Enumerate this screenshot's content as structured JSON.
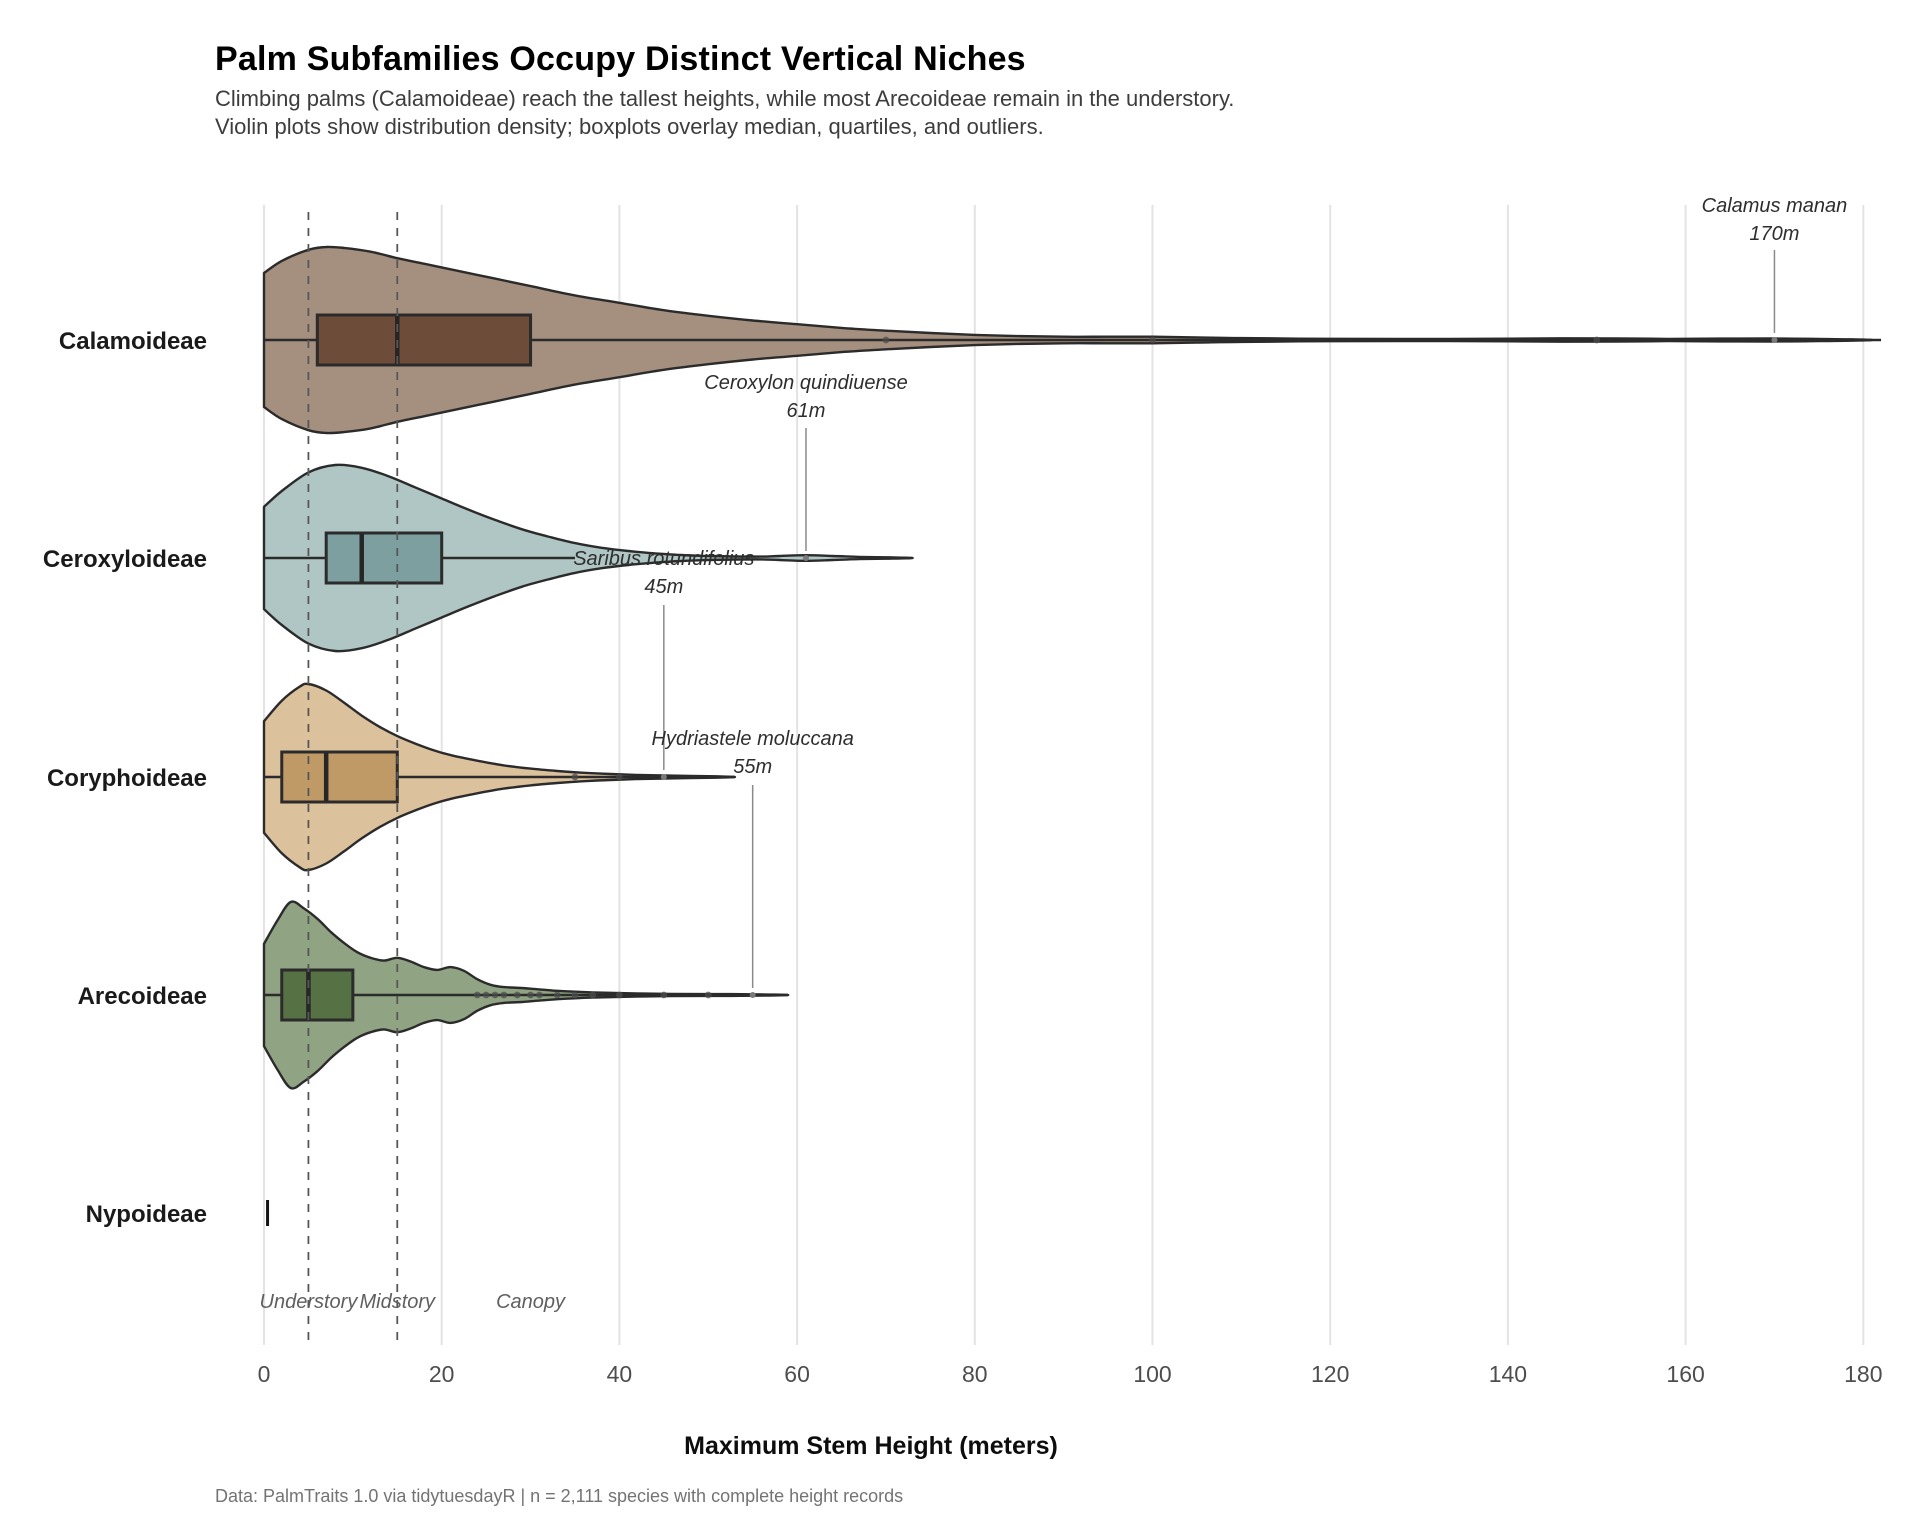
{
  "title": "Palm Subfamilies Occupy Distinct Vertical Niches",
  "subtitle": {
    "line1": "Climbing palms (Calamoideae) reach the tallest heights, while most Arecoideae remain in the understory.",
    "line2": "Violin plots show distribution density; boxplots overlay median, quartiles, and outliers."
  },
  "caption": "Data: PalmTraits 1.0 via tidytuesdayR | n = 2,111 species with complete height records",
  "chart_data": {
    "type": "violin+boxplot",
    "orientation": "horizontal",
    "title": "Palm Subfamilies Occupy Distinct Vertical Niches",
    "xlabel": "Maximum Stem Height (meters)",
    "xlim": [
      0,
      180
    ],
    "x_ticks": [
      0,
      20,
      40,
      60,
      80,
      100,
      120,
      140,
      160,
      180
    ],
    "grid": "vertical-major-only",
    "legend": "none",
    "reference_lines": [
      {
        "label": "Understory",
        "x": 5,
        "dashed": true
      },
      {
        "label": "Midstory",
        "x": 15,
        "dashed": true
      },
      {
        "label": "Canopy",
        "x": 30,
        "dashed": false
      }
    ],
    "series": [
      {
        "name": "Calamoideae",
        "fill": "#a5907f",
        "box_fill": "#6d4c39",
        "violin": [
          [
            0,
            0.72
          ],
          [
            2,
            0.85
          ],
          [
            5,
            0.97
          ],
          [
            7,
            1.0
          ],
          [
            9,
            0.99
          ],
          [
            12,
            0.95
          ],
          [
            15,
            0.88
          ],
          [
            18,
            0.82
          ],
          [
            22,
            0.74
          ],
          [
            26,
            0.66
          ],
          [
            30,
            0.58
          ],
          [
            35,
            0.48
          ],
          [
            40,
            0.4
          ],
          [
            45,
            0.32
          ],
          [
            50,
            0.26
          ],
          [
            55,
            0.21
          ],
          [
            60,
            0.17
          ],
          [
            65,
            0.13
          ],
          [
            70,
            0.1
          ],
          [
            75,
            0.075
          ],
          [
            80,
            0.055
          ],
          [
            85,
            0.042
          ],
          [
            90,
            0.035
          ],
          [
            95,
            0.035
          ],
          [
            100,
            0.035
          ],
          [
            105,
            0.028
          ],
          [
            110,
            0.02
          ],
          [
            120,
            0.013
          ],
          [
            130,
            0.011
          ],
          [
            140,
            0.014
          ],
          [
            146,
            0.018
          ],
          [
            152,
            0.017
          ],
          [
            158,
            0.012
          ],
          [
            164,
            0.015
          ],
          [
            170,
            0.016
          ],
          [
            175,
            0.012
          ],
          [
            181,
            0
          ]
        ],
        "box": {
          "q1": 6,
          "median": 15,
          "q3": 30
        },
        "line_end": 182,
        "outliers": [
          70,
          100,
          150
        ],
        "annotation": {
          "species": "Calamus manan",
          "label": "170m",
          "value": 170
        }
      },
      {
        "name": "Ceroxyloideae",
        "fill": "#afc6c4",
        "box_fill": "#7d9fa0",
        "violin": [
          [
            0,
            0.55
          ],
          [
            2,
            0.72
          ],
          [
            5,
            0.92
          ],
          [
            8,
            1.0
          ],
          [
            11,
            0.97
          ],
          [
            14,
            0.88
          ],
          [
            17,
            0.76
          ],
          [
            20,
            0.64
          ],
          [
            23,
            0.52
          ],
          [
            26,
            0.41
          ],
          [
            29,
            0.31
          ],
          [
            32,
            0.23
          ],
          [
            35,
            0.16
          ],
          [
            38,
            0.11
          ],
          [
            41,
            0.075
          ],
          [
            44,
            0.05
          ],
          [
            47,
            0.032
          ],
          [
            50,
            0.022
          ],
          [
            53,
            0.016
          ],
          [
            56,
            0.015
          ],
          [
            58,
            0.022
          ],
          [
            61,
            0.03
          ],
          [
            64,
            0.022
          ],
          [
            67,
            0.012
          ],
          [
            70,
            0.007
          ],
          [
            73,
            0
          ]
        ],
        "box": {
          "q1": 7,
          "median": 11,
          "q3": 20
        },
        "line_end": 35,
        "outliers": [],
        "annotation": {
          "species": "Ceroxylon quindiuense",
          "label": "61m",
          "value": 61
        }
      },
      {
        "name": "Coryphoideae",
        "fill": "#dcc19d",
        "box_fill": "#bf9a66",
        "violin": [
          [
            0,
            0.6
          ],
          [
            2,
            0.82
          ],
          [
            4,
            0.97
          ],
          [
            5,
            1.0
          ],
          [
            7,
            0.93
          ],
          [
            9,
            0.8
          ],
          [
            11,
            0.66
          ],
          [
            13,
            0.54
          ],
          [
            15,
            0.44
          ],
          [
            17,
            0.36
          ],
          [
            19,
            0.29
          ],
          [
            21,
            0.235
          ],
          [
            24,
            0.175
          ],
          [
            27,
            0.125
          ],
          [
            30,
            0.09
          ],
          [
            33,
            0.065
          ],
          [
            36,
            0.045
          ],
          [
            39,
            0.032
          ],
          [
            42,
            0.022
          ],
          [
            45,
            0.016
          ],
          [
            48,
            0.011
          ],
          [
            51,
            0.007
          ],
          [
            53,
            0
          ]
        ],
        "box": {
          "q1": 2,
          "median": 7,
          "q3": 15
        },
        "line_end": 53,
        "outliers": [
          35,
          40
        ],
        "annotation": {
          "species": "Saribus rotundifolius",
          "label": "45m",
          "value": 45
        }
      },
      {
        "name": "Arecoideae",
        "fill": "#90a383",
        "box_fill": "#567245",
        "violin": [
          [
            0,
            0.55
          ],
          [
            1.5,
            0.8
          ],
          [
            3,
            1.0
          ],
          [
            4.5,
            0.93
          ],
          [
            6,
            0.82
          ],
          [
            7.5,
            0.68
          ],
          [
            9,
            0.56
          ],
          [
            10.5,
            0.46
          ],
          [
            12,
            0.4
          ],
          [
            13.5,
            0.37
          ],
          [
            15,
            0.4
          ],
          [
            16.5,
            0.36
          ],
          [
            18,
            0.3
          ],
          [
            19.5,
            0.27
          ],
          [
            21,
            0.3
          ],
          [
            22.5,
            0.26
          ],
          [
            24,
            0.17
          ],
          [
            25.5,
            0.11
          ],
          [
            27,
            0.085
          ],
          [
            29,
            0.075
          ],
          [
            31,
            0.06
          ],
          [
            33,
            0.045
          ],
          [
            35,
            0.035
          ],
          [
            37,
            0.028
          ],
          [
            40,
            0.02
          ],
          [
            43,
            0.015
          ],
          [
            46,
            0.012
          ],
          [
            50,
            0.01
          ],
          [
            55,
            0.008
          ],
          [
            59,
            0
          ]
        ],
        "box": {
          "q1": 2,
          "median": 5,
          "q3": 10
        },
        "line_end": 59,
        "outliers": [
          24,
          25,
          26,
          27,
          28.5,
          30,
          31,
          33,
          35,
          37,
          40,
          45,
          50
        ],
        "annotation": {
          "species": "Hydriastele moluccana",
          "label": "55m",
          "value": 55
        }
      },
      {
        "name": "Nypoideae",
        "fill": "#1a1a1a",
        "box_fill": "#1a1a1a",
        "violin": [],
        "box": null,
        "line_end": null,
        "single_tick": 0.4,
        "outliers": [],
        "annotation": null
      }
    ]
  }
}
